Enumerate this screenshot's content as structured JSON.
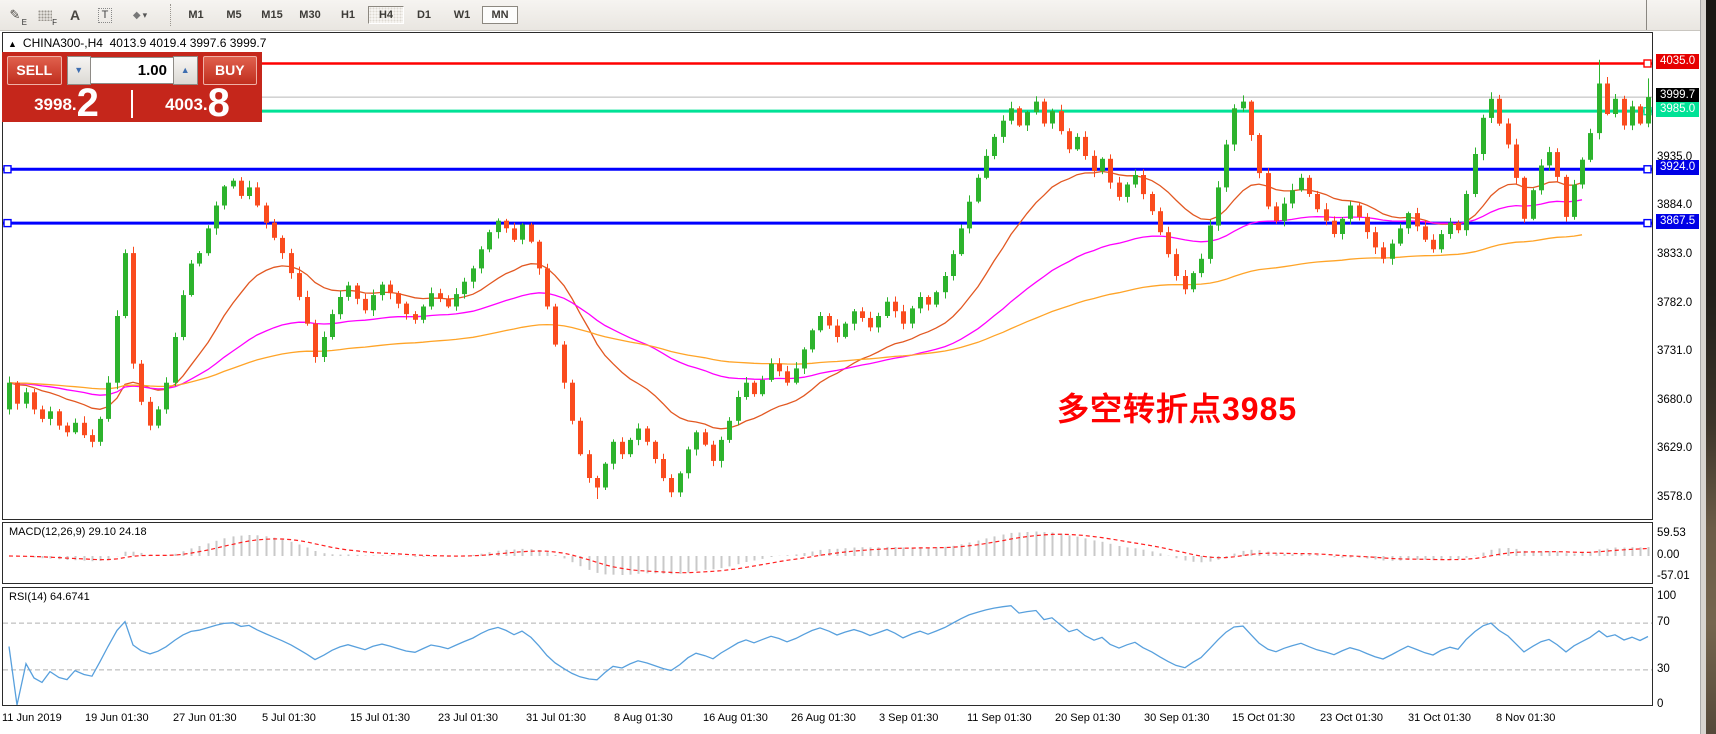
{
  "toolbar": {
    "tools": {
      "indicators": {
        "glyph": "✎",
        "sub": "E"
      },
      "objects": {
        "sub": "F"
      },
      "text_a": {
        "glyph": "A"
      },
      "text_label": {
        "glyph": "T"
      },
      "shapes": {
        "glyph": "◆",
        "caret": "▾"
      }
    },
    "timeframes": [
      {
        "label": "M1"
      },
      {
        "label": "M5"
      },
      {
        "label": "M15"
      },
      {
        "label": "M30"
      },
      {
        "label": "H1"
      },
      {
        "label": "H4",
        "active": true
      },
      {
        "label": "D1"
      },
      {
        "label": "W1"
      },
      {
        "label": "MN",
        "boxed": true
      }
    ]
  },
  "symbol_header": {
    "collapse_glyph": "▲",
    "symbol": "CHINA300-,H4",
    "ohlc_text": "4013.9 4019.4 3997.6 3999.7"
  },
  "trade_panel": {
    "sell_label": "SELL",
    "buy_label": "BUY",
    "volume": "1.00",
    "spin_down": "▼",
    "spin_up": "▲",
    "sell_price_main": "3998",
    "sell_price_dot": ".",
    "sell_price_big": "2",
    "buy_price_main": "4003",
    "buy_price_dot": ".",
    "buy_price_big": "8",
    "panel_color": "#c5261b"
  },
  "annotation": {
    "text": "多空转折点3985",
    "color": "#FF0000"
  },
  "price_axis": {
    "plain_ticks": [
      {
        "text": "3935.0",
        "price": 3935
      },
      {
        "text": "3884.0",
        "price": 3884
      },
      {
        "text": "3833.0",
        "price": 3833
      },
      {
        "text": "3782.0",
        "price": 3782
      },
      {
        "text": "3731.0",
        "price": 3731
      },
      {
        "text": "3680.0",
        "price": 3680
      },
      {
        "text": "3629.0",
        "price": 3629
      },
      {
        "text": "3578.0",
        "price": 3578
      }
    ],
    "line_labels": [
      {
        "text": "4035.0",
        "price": 4035,
        "bg": "#e60000",
        "fg": "#ffffff"
      },
      {
        "text": "3999.7",
        "price": 3999.7,
        "bg": "#000000",
        "fg": "#ffffff"
      },
      {
        "text": "3985.0",
        "price": 3985,
        "bg": "#00e296",
        "fg": "#ffffff"
      },
      {
        "text": "3924.0",
        "price": 3924,
        "bg": "#0000e6",
        "fg": "#ffffff"
      },
      {
        "text": "3867.5",
        "price": 3867.5,
        "bg": "#0000e6",
        "fg": "#ffffff"
      }
    ]
  },
  "chart_data": {
    "type": "candlestick",
    "symbol": "CHINA300-",
    "timeframe": "H4",
    "price_range": [
      3557,
      4067
    ],
    "colors": {
      "up": "#2db32d",
      "down": "#fa4b1e",
      "hline_red": "#ff0000",
      "hline_green": "#00e296",
      "hline_blue": "#0000ff",
      "current_price_line": "#b9b9b9",
      "ma_fast": "#e25822",
      "ma_mid": "#ff00ff",
      "ma_slow": "#ffa428",
      "macd_hist": "#c9c9c9",
      "macd_signal": "#ff2020",
      "rsi_line": "#58a0dd",
      "rsi_level": "#b0b0b0"
    },
    "hlines": [
      {
        "price": 4035,
        "color": "#ff0000",
        "width": 2.4,
        "markers": true
      },
      {
        "price": 3985,
        "color": "#00e296",
        "width": 3,
        "markers": true
      },
      {
        "price": 3924,
        "color": "#0000ff",
        "width": 3,
        "markers": true
      },
      {
        "price": 3867.5,
        "color": "#0000ff",
        "width": 3,
        "markers": true
      }
    ],
    "current_price": 3999.7,
    "first_open": 3672,
    "closes": [
      3700,
      3678,
      3690,
      3672,
      3662,
      3670,
      3655,
      3648,
      3658,
      3645,
      3638,
      3662,
      3700,
      3770,
      3836,
      3720,
      3680,
      3655,
      3672,
      3700,
      3748,
      3792,
      3825,
      3836,
      3862,
      3886,
      3906,
      3912,
      3896,
      3905,
      3886,
      3868,
      3852,
      3836,
      3815,
      3790,
      3762,
      3727,
      3748,
      3772,
      3790,
      3802,
      3788,
      3776,
      3792,
      3803,
      3794,
      3783,
      3772,
      3766,
      3780,
      3794,
      3788,
      3780,
      3793,
      3806,
      3820,
      3840,
      3858,
      3870,
      3862,
      3850,
      3866,
      3848,
      3820,
      3780,
      3740,
      3700,
      3660,
      3625,
      3600,
      3590,
      3615,
      3638,
      3625,
      3640,
      3652,
      3638,
      3620,
      3600,
      3585,
      3605,
      3630,
      3648,
      3635,
      3618,
      3640,
      3660,
      3685,
      3700,
      3688,
      3703,
      3720,
      3712,
      3700,
      3715,
      3735,
      3755,
      3770,
      3760,
      3748,
      3762,
      3775,
      3768,
      3758,
      3770,
      3785,
      3775,
      3762,
      3778,
      3790,
      3782,
      3795,
      3812,
      3835,
      3862,
      3890,
      3915,
      3938,
      3958,
      3975,
      3988,
      3970,
      3984,
      3995,
      3972,
      3985,
      3964,
      3945,
      3958,
      3938,
      3922,
      3935,
      3910,
      3895,
      3908,
      3918,
      3898,
      3880,
      3858,
      3835,
      3812,
      3798,
      3815,
      3830,
      3865,
      3905,
      3950,
      3988,
      3995,
      3960,
      3920,
      3885,
      3870,
      3888,
      3902,
      3915,
      3898,
      3882,
      3870,
      3856,
      3872,
      3886,
      3874,
      3858,
      3842,
      3830,
      3846,
      3862,
      3878,
      3864,
      3850,
      3840,
      3856,
      3868,
      3860,
      3898,
      3940,
      3978,
      3998,
      3972,
      3950,
      3915,
      3872,
      3902,
      3928,
      3942,
      3916,
      3874,
      3908,
      3934,
      3962,
      4014,
      3982,
      3998,
      3970,
      3990,
      3972,
      3999.7
    ],
    "wick_overrides": {
      "71": [
        0,
        3578
      ],
      "80": [
        0,
        3580
      ],
      "192": [
        4039,
        0
      ],
      "198": [
        4019.4,
        3968
      ]
    },
    "moving_averages": [
      {
        "name": "fast",
        "period": 20,
        "color": "#e25822"
      },
      {
        "name": "mid",
        "period": 55,
        "color": "#ff00ff"
      },
      {
        "name": "slow",
        "period": 120,
        "color": "#ffa428"
      }
    ],
    "macd": {
      "header_text": "MACD(12,26,9) 29.10 24.18",
      "params": [
        12,
        26,
        9
      ],
      "values": [
        29.1,
        24.18
      ],
      "axis": [
        {
          "text": "59.53",
          "value": 59.53
        },
        {
          "text": "0.00",
          "value": 0
        },
        {
          "text": "-57.01",
          "value": -57.01
        }
      ]
    },
    "rsi": {
      "header_text": "RSI(14) 64.6741",
      "period": 14,
      "value": 64.6741,
      "levels": [
        70,
        30
      ],
      "axis": [
        {
          "text": "100",
          "value": 100
        },
        {
          "text": "70",
          "value": 70
        },
        {
          "text": "30",
          "value": 30
        },
        {
          "text": "0",
          "value": 0
        }
      ]
    },
    "x_labels": [
      "11 Jun 2019",
      "19 Jun 01:30",
      "27 Jun 01:30",
      "5 Jul 01:30",
      "15 Jul 01:30",
      "23 Jul 01:30",
      "31 Jul 01:30",
      "8 Aug 01:30",
      "16 Aug 01:30",
      "26 Aug 01:30",
      "3 Sep 01:30",
      "11 Sep 01:30",
      "20 Sep 01:30",
      "30 Sep 01:30",
      "15 Oct 01:30",
      "23 Oct 01:30",
      "31 Oct 01:30",
      "8 Nov 01:30"
    ]
  }
}
